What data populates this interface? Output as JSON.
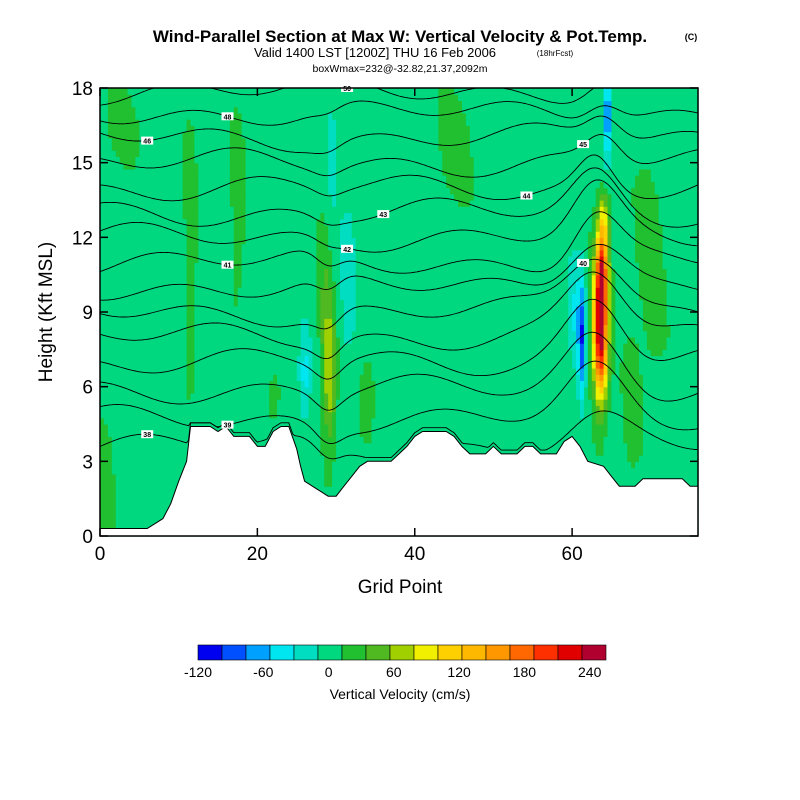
{
  "chart_data": {
    "type": "contour-section",
    "title": "Wind-Parallel Section at Max W: Vertical Velocity & Pot.Temp.",
    "title_units": "(C)",
    "subtitle": "Valid 1400 LST [1200Z] THU 16 Feb 2006",
    "forecast_note": "(18hrFcst)",
    "box_info": "boxWmax=232@-32.82,21.37,2092m",
    "xlabel": "Grid Point",
    "ylabel": "Height (Kft MSL)",
    "xlim": [
      0,
      76
    ],
    "ylim": [
      0,
      18
    ],
    "x_ticks": [
      "0",
      "20",
      "40",
      "60"
    ],
    "x_tick_values": [
      0,
      20,
      40,
      60
    ],
    "y_ticks": [
      "0",
      "3",
      "6",
      "9",
      "12",
      "15",
      "18"
    ],
    "y_tick_values": [
      0,
      3,
      6,
      9,
      12,
      15,
      18
    ],
    "colorbar": {
      "label": "Vertical Velocity (cm/s)",
      "ticks": [
        "-120",
        "-60",
        "0",
        "60",
        "120",
        "180",
        "240"
      ],
      "tick_values": [
        -120,
        -60,
        0,
        60,
        120,
        180,
        240
      ],
      "min": -120,
      "max": 255,
      "colors": [
        "#0000f0",
        "#0050ff",
        "#00a0ff",
        "#00e6f0",
        "#00ddc0",
        "#00d880",
        "#20c030",
        "#50b820",
        "#a0d000",
        "#f0f000",
        "#ffd000",
        "#ffb800",
        "#ff9800",
        "#ff6800",
        "#ff3000",
        "#e00000",
        "#b00030"
      ]
    },
    "terrain_kft": [
      [
        0,
        0.3
      ],
      [
        6,
        0.3
      ],
      [
        7,
        0.5
      ],
      [
        8,
        0.7
      ],
      [
        9,
        1.3
      ],
      [
        10,
        2.2
      ],
      [
        11,
        3.0
      ],
      [
        11.5,
        4.4
      ],
      [
        14,
        4.4
      ],
      [
        15,
        4.2
      ],
      [
        16,
        4.4
      ],
      [
        17,
        4.0
      ],
      [
        19,
        4.0
      ],
      [
        20,
        3.6
      ],
      [
        21,
        3.6
      ],
      [
        22,
        4.2
      ],
      [
        23,
        4.4
      ],
      [
        24,
        4.4
      ],
      [
        25,
        3.5
      ],
      [
        25.5,
        2.8
      ],
      [
        26,
        2.2
      ],
      [
        27,
        2.0
      ],
      [
        28,
        1.8
      ],
      [
        29,
        1.6
      ],
      [
        30,
        1.6
      ],
      [
        31,
        2.0
      ],
      [
        32,
        2.4
      ],
      [
        33,
        2.8
      ],
      [
        34,
        3.0
      ],
      [
        37,
        3.0
      ],
      [
        38,
        3.3
      ],
      [
        39,
        3.6
      ],
      [
        40,
        4.0
      ],
      [
        41,
        4.2
      ],
      [
        44,
        4.2
      ],
      [
        45,
        4.0
      ],
      [
        46,
        3.6
      ],
      [
        47,
        3.3
      ],
      [
        49,
        3.3
      ],
      [
        50,
        3.6
      ],
      [
        51,
        3.3
      ],
      [
        53,
        3.3
      ],
      [
        54,
        3.6
      ],
      [
        55,
        3.6
      ],
      [
        56,
        3.3
      ],
      [
        58,
        3.3
      ],
      [
        59,
        3.8
      ],
      [
        60,
        4.0
      ],
      [
        61,
        3.6
      ],
      [
        62,
        3.0
      ],
      [
        64,
        2.8
      ],
      [
        65,
        2.4
      ],
      [
        66,
        2.0
      ],
      [
        68,
        2.0
      ],
      [
        69,
        2.3
      ],
      [
        74,
        2.3
      ],
      [
        75,
        2.0
      ],
      [
        76,
        2.0
      ]
    ],
    "w_features": [
      {
        "x": 63.6,
        "y": 8.2,
        "sx": 0.9,
        "sy": 2.6,
        "w": 250
      },
      {
        "x": 63.8,
        "y": 10.8,
        "sx": 0.8,
        "sy": 1.6,
        "w": 140
      },
      {
        "x": 64.0,
        "y": 12.8,
        "sx": 0.7,
        "sy": 1.0,
        "w": 70
      },
      {
        "x": 64.5,
        "y": 17.0,
        "sx": 0.5,
        "sy": 1.8,
        "w": -90
      },
      {
        "x": 61.2,
        "y": 8.0,
        "sx": 0.5,
        "sy": 2.5,
        "w": -100
      },
      {
        "x": 60.2,
        "y": 9.0,
        "sx": 0.7,
        "sy": 2.5,
        "w": -35
      },
      {
        "x": 29.2,
        "y": 6.5,
        "sx": 0.8,
        "sy": 2.8,
        "w": 70
      },
      {
        "x": 28.5,
        "y": 9.5,
        "sx": 0.8,
        "sy": 3.5,
        "w": 25
      },
      {
        "x": 26.0,
        "y": 6.5,
        "sx": 0.8,
        "sy": 2.0,
        "w": -45
      },
      {
        "x": 31.5,
        "y": 10.0,
        "sx": 1.2,
        "sy": 4.0,
        "w": -25
      },
      {
        "x": 29.5,
        "y": 15.5,
        "sx": 0.8,
        "sy": 2.5,
        "w": -25
      },
      {
        "x": 17.5,
        "y": 13.0,
        "sx": 0.8,
        "sy": 3.5,
        "w": 25
      },
      {
        "x": 11.5,
        "y": 12.0,
        "sx": 0.8,
        "sy": 5.0,
        "w": 20
      },
      {
        "x": 34.0,
        "y": 5.8,
        "sx": 1.0,
        "sy": 1.6,
        "w": 20
      },
      {
        "x": 45.0,
        "y": 15.5,
        "sx": 2.5,
        "sy": 2.5,
        "w": 15
      },
      {
        "x": 0.6,
        "y": 2.5,
        "sx": 1.2,
        "sy": 2.5,
        "w": 20
      },
      {
        "x": 3.0,
        "y": 16.5,
        "sx": 2.5,
        "sy": 1.5,
        "w": 15
      },
      {
        "x": 70.0,
        "y": 11.0,
        "sx": 2.0,
        "sy": 6.0,
        "w": 15
      },
      {
        "x": 67.5,
        "y": 5.5,
        "sx": 1.0,
        "sy": 2.5,
        "w": 20
      },
      {
        "x": 22.0,
        "y": 5.5,
        "sx": 1.2,
        "sy": 1.5,
        "w": 15
      }
    ],
    "isentropes": [
      {
        "label": "38",
        "y0": 3.6,
        "bump": 1.0,
        "bumpX": 63,
        "bumpW": 5
      },
      {
        "label": "39",
        "y0": 4.7,
        "bump": 1.8,
        "bumpX": 63,
        "bumpW": 5
      },
      {
        "label": "",
        "y0": 5.9,
        "bump": 2.2,
        "bumpX": 63,
        "bumpW": 5
      },
      {
        "label": "",
        "y0": 7.0,
        "bump": 2.6,
        "bumpX": 63,
        "bumpW": 5
      },
      {
        "label": "",
        "y0": 8.0,
        "bump": 2.6,
        "bumpX": 63,
        "bumpW": 5
      },
      {
        "label": "40",
        "y0": 9.0,
        "bump": 2.4,
        "bumpX": 63,
        "bumpW": 5
      },
      {
        "label": "",
        "y0": 10.0,
        "bump": 2.2,
        "bumpX": 63,
        "bumpW": 5
      },
      {
        "label": "41",
        "y0": 11.0,
        "bump": 2.0,
        "bumpX": 63,
        "bumpW": 4
      },
      {
        "label": "42",
        "y0": 12.0,
        "bump": 1.8,
        "bumpX": 63,
        "bumpW": 4
      },
      {
        "label": "43",
        "y0": 13.0,
        "bump": 1.5,
        "bumpX": 63,
        "bumpW": 4
      },
      {
        "label": "44",
        "y0": 14.0,
        "bump": 1.3,
        "bumpX": 63,
        "bumpW": 3
      },
      {
        "label": "45",
        "y0": 15.0,
        "bump": 1.1,
        "bumpX": 64,
        "bumpW": 3
      },
      {
        "label": "46",
        "y0": 16.0,
        "bump": 1.0,
        "bumpX": 64,
        "bumpW": 3
      },
      {
        "label": "48",
        "y0": 17.0,
        "bump": 0.8,
        "bumpX": 64,
        "bumpW": 3
      },
      {
        "label": "50",
        "y0": 17.9,
        "bump": 0.6,
        "bumpX": 64,
        "bumpW": 3
      }
    ]
  }
}
